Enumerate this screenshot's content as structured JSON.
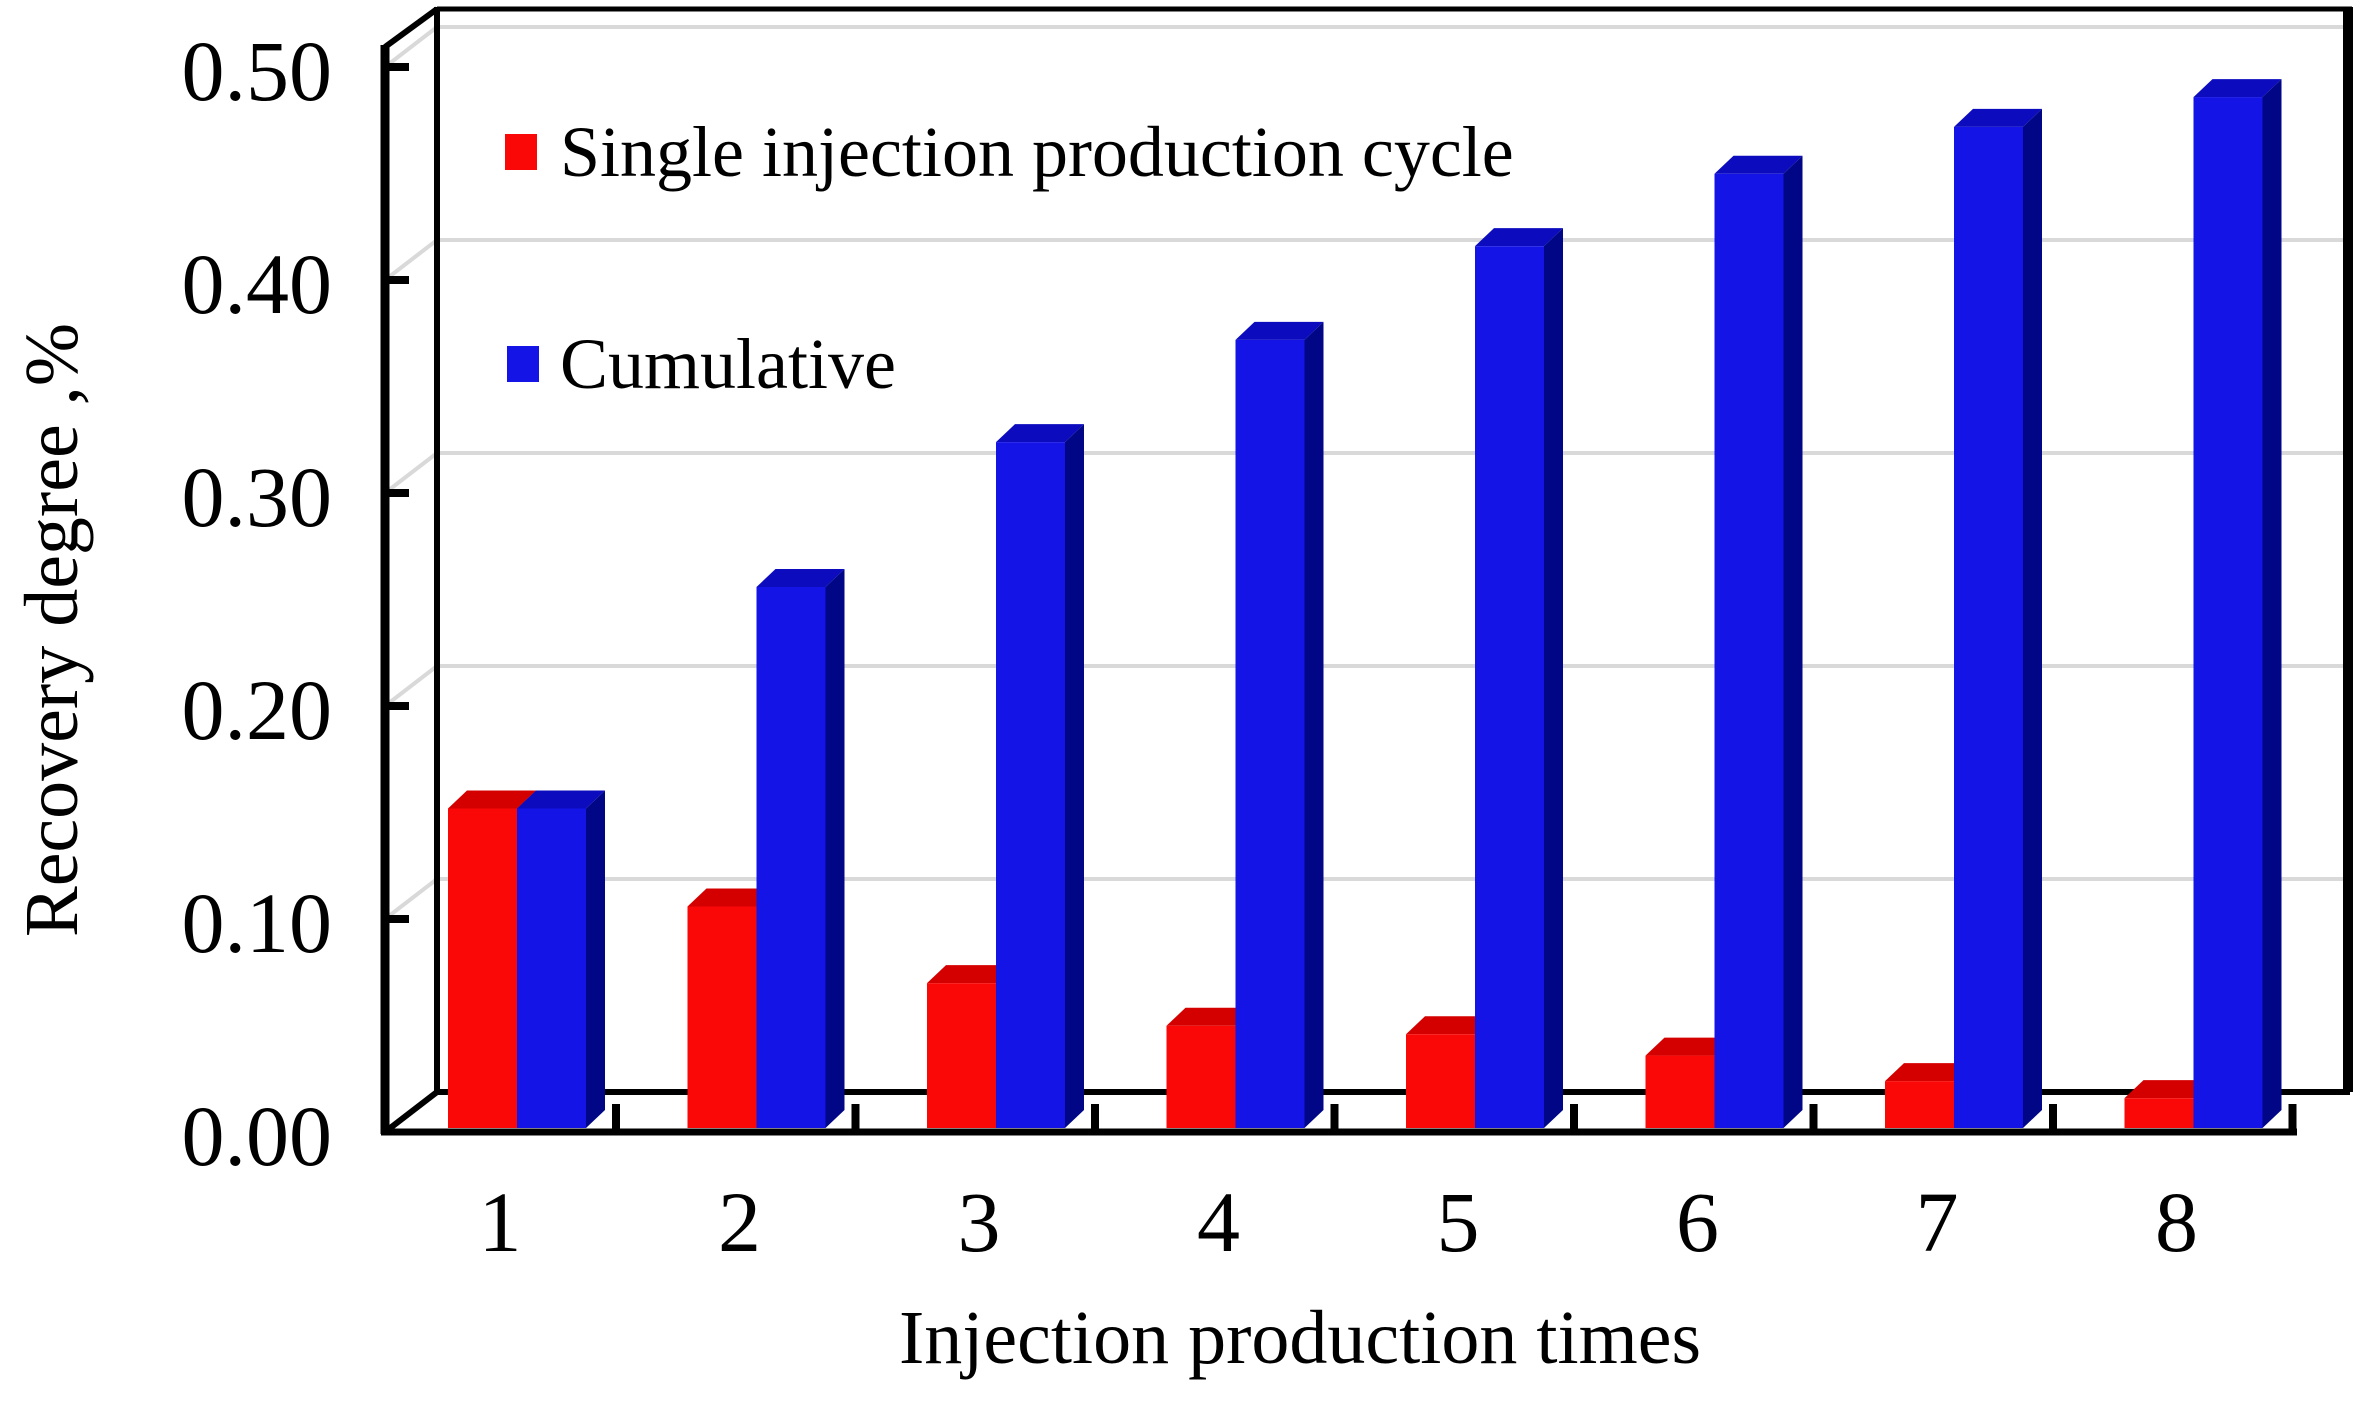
{
  "chart_data": {
    "type": "bar",
    "variant": "3d-clustered-column",
    "title": "",
    "categories": [
      "1",
      "2",
      "3",
      "4",
      "5",
      "6",
      "7",
      "8"
    ],
    "series": [
      {
        "name": "Single injection production cycle",
        "color": "#fa0707",
        "color_top": "#d40000",
        "color_side": "#9e0000",
        "values": [
          0.15,
          0.104,
          0.068,
          0.048,
          0.044,
          0.034,
          0.022,
          0.014
        ]
      },
      {
        "name": "Cumulative",
        "color": "#1414e6",
        "color_top": "#0c0cbe",
        "color_side": "#000686",
        "values": [
          0.15,
          0.254,
          0.322,
          0.37,
          0.414,
          0.448,
          0.47,
          0.484
        ]
      }
    ],
    "xlabel": "Injection production times",
    "ylabel": "Recovery degree ,%",
    "yticks": [
      "0.00",
      "0.10",
      "0.20",
      "0.30",
      "0.40",
      "0.50"
    ],
    "ylim": [
      0,
      0.5
    ],
    "grid": "horizontal",
    "gridline_color": "#d9d9d9",
    "axis_color": "#000000",
    "background": "#ffffff",
    "legend_position": "top-left-inside"
  }
}
